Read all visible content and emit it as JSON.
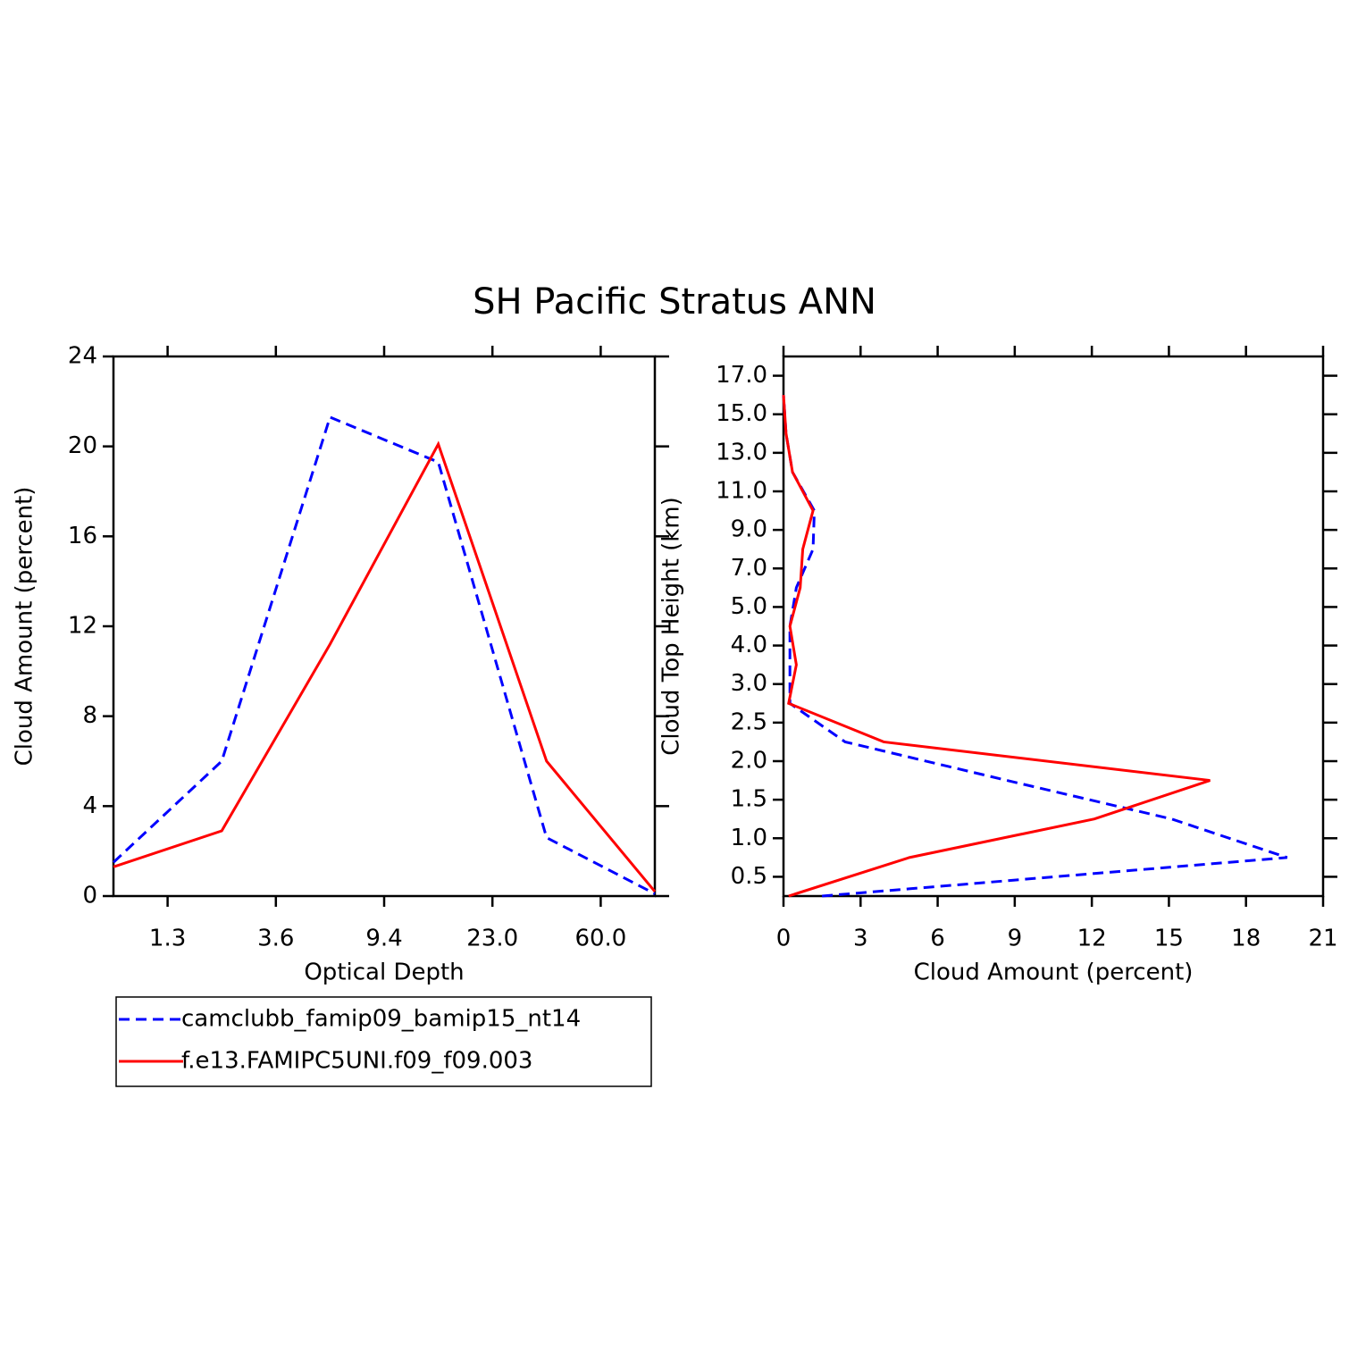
{
  "title": "SH Pacific Stratus ANN",
  "chart_data": [
    {
      "type": "line",
      "orientation": "vertical",
      "xlabel": "Optical Depth",
      "ylabel": "Cloud Amount (percent)",
      "x": [
        0,
        1,
        2,
        3,
        4,
        5
      ],
      "xlim": [
        0,
        5
      ],
      "xticks": [
        {
          "value": 0.5,
          "label": "1.3"
        },
        {
          "value": 1.5,
          "label": "3.6"
        },
        {
          "value": 2.5,
          "label": "9.4"
        },
        {
          "value": 3.5,
          "label": "23.0"
        },
        {
          "value": 4.5,
          "label": "60.0"
        }
      ],
      "ylim": [
        0,
        24
      ],
      "yticks": [
        0,
        4,
        8,
        12,
        16,
        20,
        24
      ],
      "legend": "below",
      "series": [
        {
          "name": "camclubb_famip09_bamip15_nt14",
          "color": "#0000ff",
          "dash": "dashed",
          "values": [
            1.5,
            6.0,
            21.3,
            19.3,
            2.6,
            0.1
          ]
        },
        {
          "name": "f.e13.FAMIPC5UNI.f09_f09.003",
          "color": "#ff0000",
          "dash": "solid",
          "values": [
            1.3,
            2.9,
            11.2,
            20.1,
            6.0,
            0.2
          ]
        }
      ]
    },
    {
      "type": "line",
      "orientation": "horizontal",
      "xlabel": "Cloud Amount (percent)",
      "ylabel": "Cloud Top Height (km)",
      "y": [
        0,
        1,
        2,
        3,
        4,
        5,
        6,
        7,
        8,
        9,
        10,
        11,
        12,
        13
      ],
      "ylim": [
        0,
        14
      ],
      "yticks": [
        {
          "value": 0.5,
          "label": "0.5"
        },
        {
          "value": 1.5,
          "label": "1.0"
        },
        {
          "value": 2.5,
          "label": "1.5"
        },
        {
          "value": 3.5,
          "label": "2.0"
        },
        {
          "value": 4.5,
          "label": "2.5"
        },
        {
          "value": 5.5,
          "label": "3.0"
        },
        {
          "value": 6.5,
          "label": "4.0"
        },
        {
          "value": 7.5,
          "label": "5.0"
        },
        {
          "value": 8.5,
          "label": "7.0"
        },
        {
          "value": 9.5,
          "label": "9.0"
        },
        {
          "value": 10.5,
          "label": "11.0"
        },
        {
          "value": 11.5,
          "label": "13.0"
        },
        {
          "value": 12.5,
          "label": "15.0"
        },
        {
          "value": 13.5,
          "label": "17.0"
        }
      ],
      "xlim": [
        0,
        21
      ],
      "xticks": [
        0,
        3,
        6,
        9,
        12,
        15,
        18,
        21
      ],
      "series": [
        {
          "color": "#0000ff",
          "dash": "dashed",
          "values": [
            1.5,
            19.6,
            15.1,
            8.7,
            2.4,
            0.25,
            0.25,
            0.25,
            0.5,
            1.15,
            1.2,
            0.35,
            0.1,
            0.0
          ]
        },
        {
          "color": "#ff0000",
          "dash": "solid",
          "values": [
            0.2,
            4.9,
            12.1,
            16.6,
            3.9,
            0.2,
            0.5,
            0.25,
            0.65,
            0.75,
            1.15,
            0.35,
            0.1,
            0.0
          ]
        }
      ]
    }
  ]
}
